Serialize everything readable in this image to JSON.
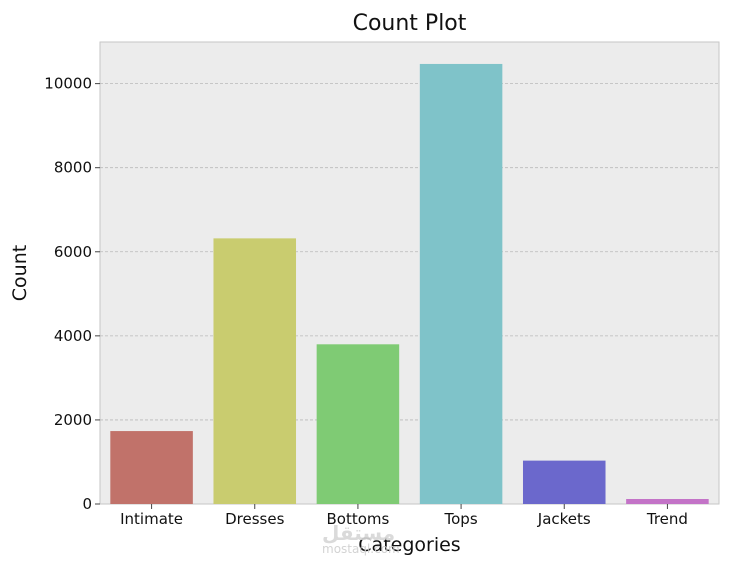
{
  "chart_data": {
    "type": "bar",
    "title": "Count Plot",
    "xlabel": "Categories",
    "ylabel": "Count",
    "categories": [
      "Intimate",
      "Dresses",
      "Bottoms",
      "Tops",
      "Jackets",
      "Trend"
    ],
    "values": [
      1735,
      6319,
      3799,
      10468,
      1032,
      119
    ],
    "colors": [
      "#c1726a",
      "#c9cc6f",
      "#7fcb74",
      "#7fc3c9",
      "#6b68cc",
      "#c373c7"
    ],
    "ylim": [
      0,
      10990
    ],
    "yticks": [
      0,
      2000,
      4000,
      6000,
      8000,
      10000
    ],
    "grid": true,
    "background": "#ececec"
  },
  "watermark": {
    "logo": "مستقل",
    "text": "mostaql.com"
  }
}
